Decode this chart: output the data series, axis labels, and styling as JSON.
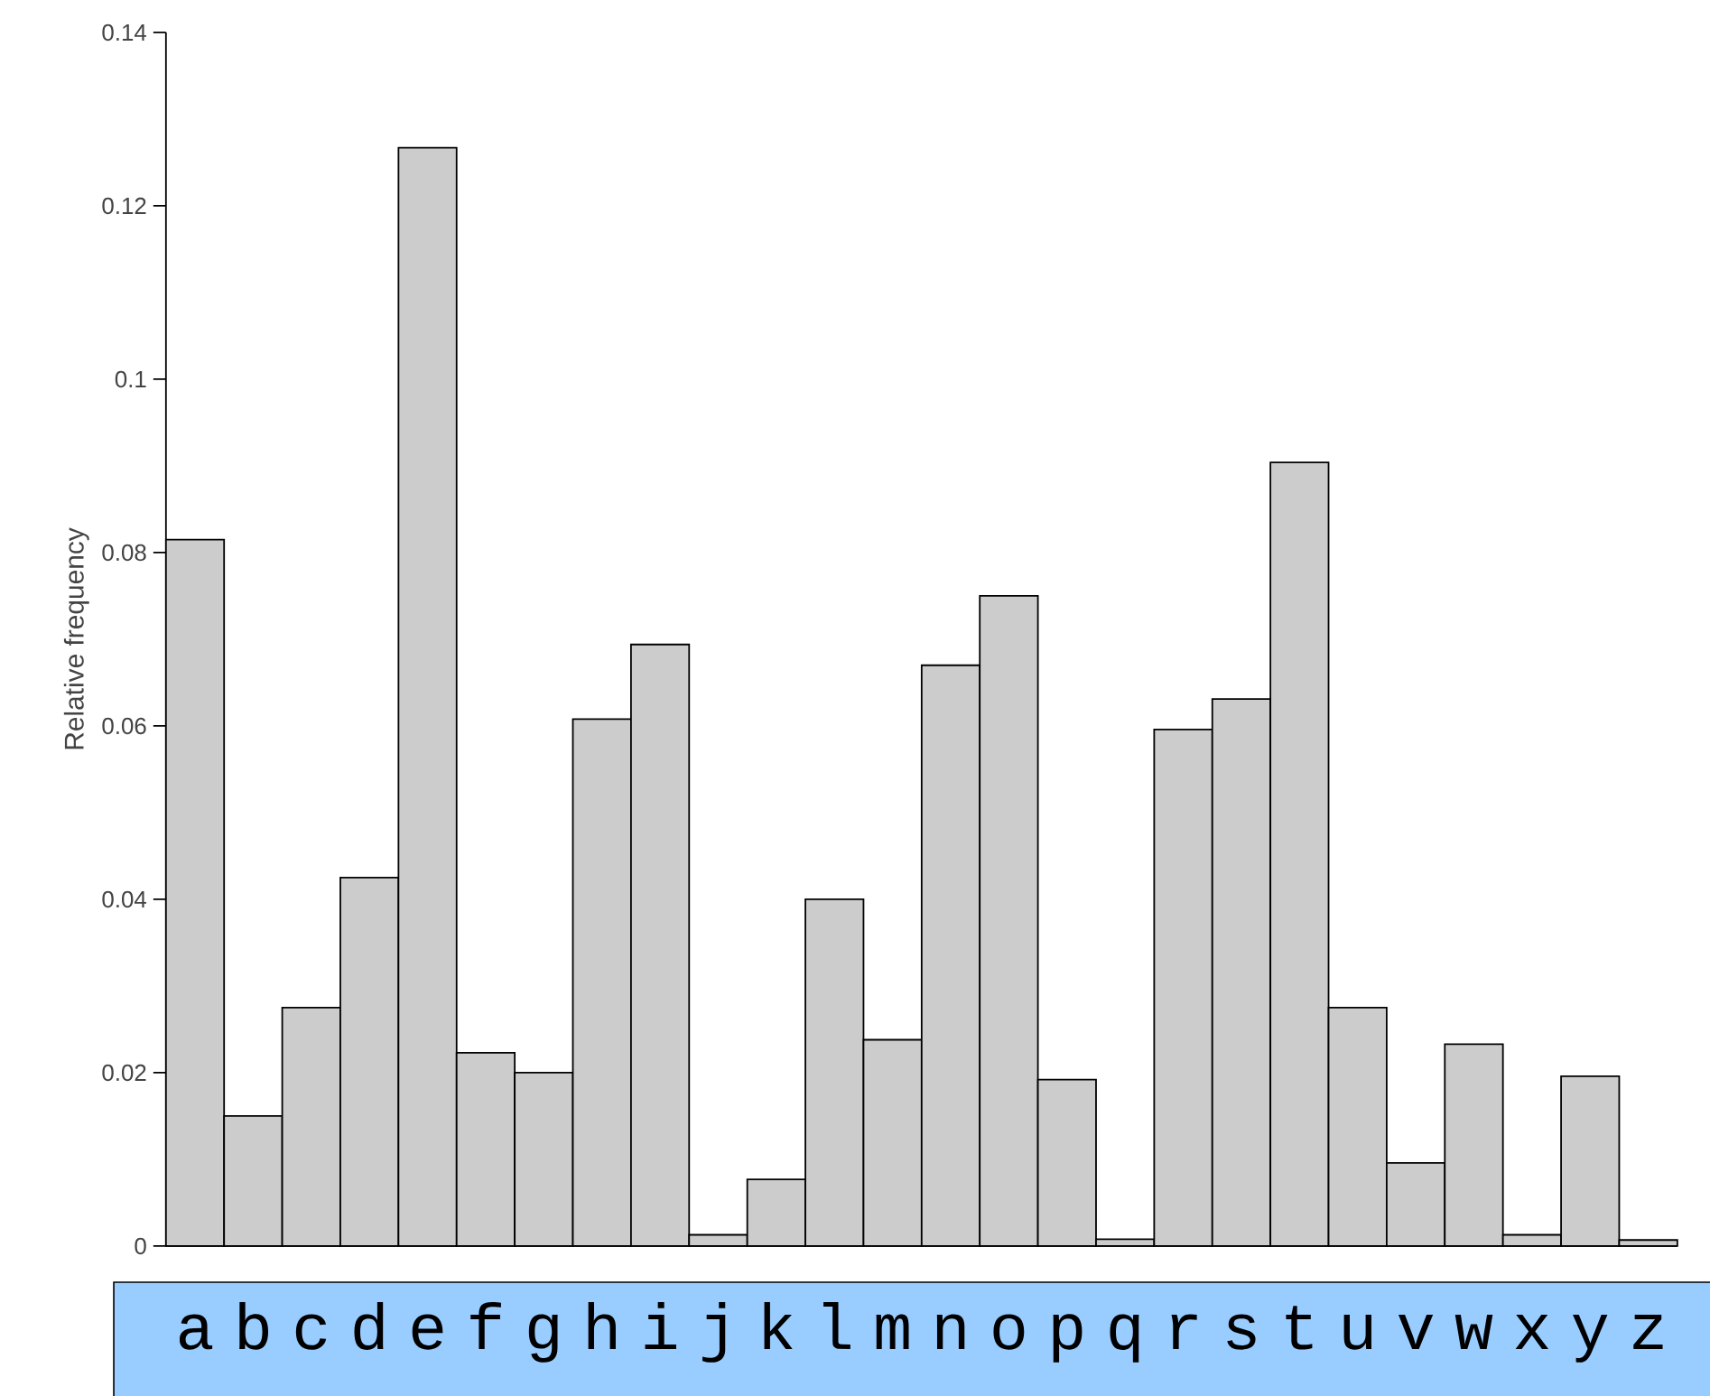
{
  "chart_data": {
    "type": "bar",
    "ylabel": "Relative frequency",
    "categories": [
      "a",
      "b",
      "c",
      "d",
      "e",
      "f",
      "g",
      "h",
      "i",
      "j",
      "k",
      "l",
      "m",
      "n",
      "o",
      "p",
      "q",
      "r",
      "s",
      "t",
      "u",
      "v",
      "w",
      "x",
      "y",
      "z"
    ],
    "values": [
      0.0815,
      0.015,
      0.0275,
      0.0425,
      0.1267,
      0.0223,
      0.02,
      0.0608,
      0.0694,
      0.0013,
      0.0077,
      0.04,
      0.0238,
      0.067,
      0.075,
      0.0192,
      0.0008,
      0.0596,
      0.0631,
      0.0904,
      0.0275,
      0.0096,
      0.0233,
      0.0013,
      0.0196,
      0.0007
    ],
    "color": "#cccccc",
    "ylim": [
      0,
      0.14
    ],
    "yticks": [
      0,
      0.02,
      0.04,
      0.06,
      0.08,
      0.1,
      0.12,
      0.14
    ],
    "grid": false
  }
}
